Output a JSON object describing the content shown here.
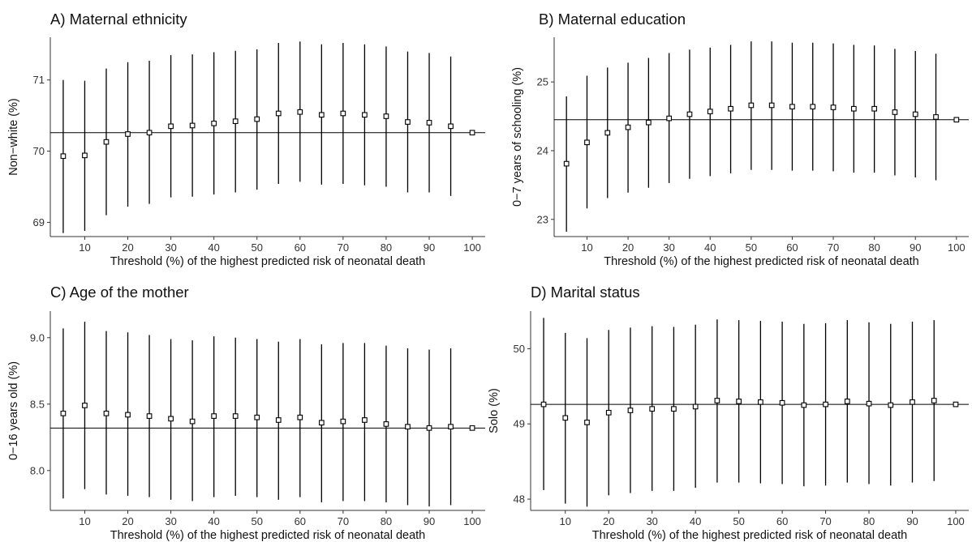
{
  "chart_data": [
    {
      "type": "scatter",
      "title": "A) Maternal ethnicity",
      "xlabel": "Threshold (%) of the highest predicted risk of neonatal death",
      "ylabel": "Non−white (%)",
      "x": [
        5,
        10,
        15,
        20,
        25,
        30,
        35,
        40,
        45,
        50,
        55,
        60,
        65,
        70,
        75,
        80,
        85,
        90,
        95,
        100
      ],
      "values": [
        69.93,
        69.94,
        70.13,
        70.24,
        70.26,
        70.35,
        70.36,
        70.39,
        70.42,
        70.45,
        70.53,
        70.55,
        70.51,
        70.53,
        70.51,
        70.49,
        70.41,
        70.4,
        70.35,
        70.26
      ],
      "lower": [
        68.85,
        68.88,
        69.1,
        69.22,
        69.26,
        69.35,
        69.36,
        69.39,
        69.42,
        69.46,
        69.54,
        69.57,
        69.53,
        69.54,
        69.52,
        69.5,
        69.42,
        69.42,
        69.37,
        null
      ],
      "upper": [
        71.0,
        70.99,
        71.16,
        71.25,
        71.27,
        71.35,
        71.36,
        71.39,
        71.41,
        71.43,
        71.52,
        71.54,
        71.5,
        71.52,
        71.5,
        71.47,
        71.4,
        71.38,
        71.33,
        null
      ],
      "reference_line": 70.26,
      "xticks": [
        10,
        20,
        30,
        40,
        50,
        60,
        70,
        80,
        90,
        100
      ],
      "yticks": [
        69,
        70,
        71
      ],
      "ytick_labels": [
        "69",
        "70",
        "71"
      ],
      "xlim": [
        2,
        103
      ],
      "ylim": [
        68.8,
        71.6
      ]
    },
    {
      "type": "scatter",
      "title": "B) Maternal education",
      "xlabel": "Threshold (%) of the highest predicted risk of neonatal death",
      "ylabel": "0−7 years of schooling (%)",
      "x": [
        5,
        10,
        15,
        20,
        25,
        30,
        35,
        40,
        45,
        50,
        55,
        60,
        65,
        70,
        75,
        80,
        85,
        90,
        95,
        100
      ],
      "values": [
        23.81,
        24.12,
        24.26,
        24.34,
        24.41,
        24.47,
        24.53,
        24.57,
        24.61,
        24.66,
        24.66,
        24.64,
        24.64,
        24.63,
        24.61,
        24.61,
        24.56,
        24.53,
        24.49,
        24.45
      ],
      "lower": [
        22.82,
        23.16,
        23.31,
        23.39,
        23.46,
        23.53,
        23.59,
        23.63,
        23.67,
        23.72,
        23.72,
        23.71,
        23.71,
        23.7,
        23.68,
        23.68,
        23.64,
        23.61,
        23.57,
        null
      ],
      "upper": [
        24.79,
        25.09,
        25.21,
        25.28,
        25.35,
        25.42,
        25.47,
        25.5,
        25.54,
        25.59,
        25.59,
        25.57,
        25.57,
        25.56,
        25.54,
        25.53,
        25.48,
        25.45,
        25.41,
        null
      ],
      "reference_line": 24.45,
      "xticks": [
        10,
        20,
        30,
        40,
        50,
        60,
        70,
        80,
        90,
        100
      ],
      "yticks": [
        23,
        24,
        25
      ],
      "ytick_labels": [
        "23",
        "24",
        "25"
      ],
      "xlim": [
        2,
        103
      ],
      "ylim": [
        22.75,
        25.65
      ]
    },
    {
      "type": "scatter",
      "title": "C) Age of the mother",
      "xlabel": "Threshold (%) of the highest predicted risk of neonatal death",
      "ylabel": "0−16 years old (%)",
      "x": [
        5,
        10,
        15,
        20,
        25,
        30,
        35,
        40,
        45,
        50,
        55,
        60,
        65,
        70,
        75,
        80,
        85,
        90,
        95,
        100
      ],
      "values": [
        8.43,
        8.49,
        8.43,
        8.42,
        8.41,
        8.39,
        8.37,
        8.41,
        8.41,
        8.4,
        8.38,
        8.4,
        8.36,
        8.37,
        8.38,
        8.35,
        8.33,
        8.32,
        8.33,
        8.32
      ],
      "lower": [
        7.79,
        7.86,
        7.82,
        7.81,
        7.8,
        7.78,
        7.77,
        7.8,
        7.81,
        7.8,
        7.78,
        7.8,
        7.76,
        7.77,
        7.77,
        7.76,
        7.74,
        7.73,
        7.74,
        null
      ],
      "upper": [
        9.07,
        9.12,
        9.05,
        9.04,
        9.02,
        8.99,
        8.98,
        9.01,
        9.0,
        8.99,
        8.97,
        8.99,
        8.95,
        8.96,
        8.96,
        8.94,
        8.92,
        8.91,
        8.92,
        null
      ],
      "reference_line": 8.32,
      "xticks": [
        10,
        20,
        30,
        40,
        50,
        60,
        70,
        80,
        90,
        100
      ],
      "yticks": [
        8.0,
        8.5,
        9.0
      ],
      "ytick_labels": [
        "8.0",
        "8.5",
        "9.0"
      ],
      "xlim": [
        2,
        103
      ],
      "ylim": [
        7.7,
        9.2
      ]
    },
    {
      "type": "scatter",
      "title": "D) Marital status",
      "xlabel": "Threshold (%) of the highest predicted risk of neonatal death",
      "ylabel": "Solo (%)",
      "x": [
        5,
        10,
        15,
        20,
        25,
        30,
        35,
        40,
        45,
        50,
        55,
        60,
        65,
        70,
        75,
        80,
        85,
        90,
        95,
        100
      ],
      "values": [
        49.26,
        49.08,
        49.02,
        49.15,
        49.18,
        49.2,
        49.2,
        49.23,
        49.31,
        49.3,
        49.29,
        49.28,
        49.25,
        49.26,
        49.3,
        49.27,
        49.25,
        49.29,
        49.31,
        49.26
      ],
      "lower": [
        48.12,
        47.94,
        47.9,
        48.05,
        48.08,
        48.11,
        48.11,
        48.15,
        48.22,
        48.22,
        48.21,
        48.2,
        48.17,
        48.18,
        48.22,
        48.2,
        48.18,
        48.22,
        48.24,
        null
      ],
      "upper": [
        50.41,
        50.21,
        50.14,
        50.25,
        50.28,
        50.3,
        50.29,
        50.32,
        50.39,
        50.38,
        50.37,
        50.36,
        50.33,
        50.34,
        50.38,
        50.35,
        50.33,
        50.36,
        50.38,
        null
      ],
      "reference_line": 49.26,
      "xticks": [
        10,
        20,
        30,
        40,
        50,
        60,
        70,
        80,
        90,
        100
      ],
      "yticks": [
        48,
        49,
        50
      ],
      "ytick_labels": [
        "48",
        "49",
        "50"
      ],
      "xlim": [
        2,
        103
      ],
      "ylim": [
        47.85,
        50.5
      ]
    }
  ]
}
